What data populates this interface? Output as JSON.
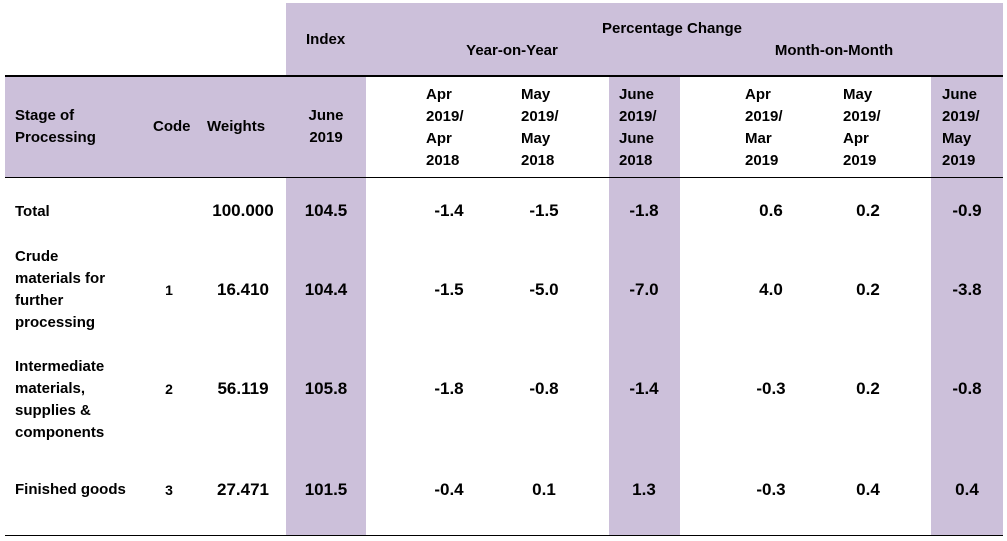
{
  "colors": {
    "highlight": "#ccc0da",
    "rule": "#000000",
    "text": "#000000",
    "background": "#ffffff"
  },
  "header": {
    "index_label": "Index",
    "percentage_change_label": "Percentage Change",
    "yoy_label": "Year-on-Year",
    "mom_label": "Month-on-Month"
  },
  "columns": {
    "stage": "Stage of\nProcessing",
    "code": "Code",
    "weights": "Weights",
    "index": "June\n2019",
    "yoy": [
      "Apr\n2019/\nApr\n2018",
      "May\n2019/\nMay\n2018",
      "June\n2019/\nJune\n2018"
    ],
    "mom": [
      "Apr\n2019/\nMar\n2019",
      "May\n2019/\nApr\n2019",
      "June\n2019/\nMay\n2019"
    ]
  },
  "rows": [
    {
      "stage": "Total",
      "code": "",
      "weight": "100.000",
      "index": "104.5",
      "yoy": [
        "-1.4",
        "-1.5",
        "-1.8"
      ],
      "mom": [
        "0.6",
        "0.2",
        "-0.9"
      ]
    },
    {
      "stage": "Crude\nmaterials for\nfurther\nprocessing",
      "code": "1",
      "weight": "16.410",
      "index": "104.4",
      "yoy": [
        "-1.5",
        "-5.0",
        "-7.0"
      ],
      "mom": [
        "4.0",
        "0.2",
        "-3.8"
      ]
    },
    {
      "stage": "Intermediate\nmaterials,\nsupplies &\ncomponents",
      "code": "2",
      "weight": "56.119",
      "index": "105.8",
      "yoy": [
        "-1.8",
        "-0.8",
        "-1.4"
      ],
      "mom": [
        "-0.3",
        "0.2",
        "-0.8"
      ]
    },
    {
      "stage": "Finished goods",
      "code": "3",
      "weight": "27.471",
      "index": "101.5",
      "yoy": [
        "-0.4",
        "0.1",
        "1.3"
      ],
      "mom": [
        "-0.3",
        "0.4",
        "0.4"
      ]
    }
  ]
}
